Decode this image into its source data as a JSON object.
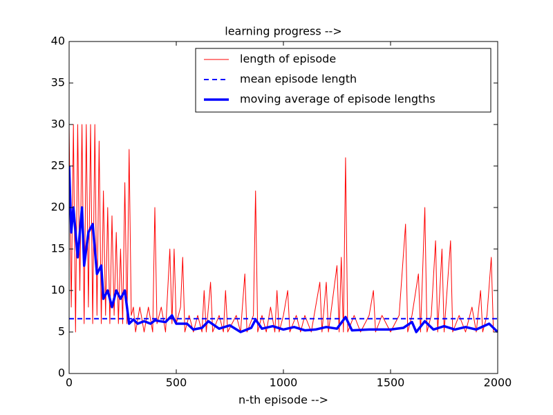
{
  "chart_data": {
    "type": "line",
    "title": "learning progress -->",
    "x_label": "n-th episode -->",
    "xlim": [
      0,
      2000
    ],
    "ylim": [
      0,
      40
    ],
    "xticks": [
      0,
      500,
      1000,
      1500,
      2000
    ],
    "yticks": [
      0,
      5,
      10,
      15,
      20,
      25,
      30,
      35,
      40
    ],
    "legend": "upper right",
    "series": [
      {
        "name": "length of episode",
        "color": "#ff0000",
        "linestyle": "solid",
        "linewidth": 1,
        "x": [
          0,
          10,
          20,
          30,
          40,
          50,
          60,
          70,
          80,
          90,
          100,
          110,
          120,
          130,
          140,
          150,
          160,
          170,
          180,
          190,
          200,
          210,
          220,
          230,
          240,
          250,
          260,
          270,
          280,
          290,
          300,
          310,
          330,
          350,
          370,
          390,
          400,
          410,
          430,
          450,
          470,
          480,
          490,
          500,
          520,
          530,
          540,
          560,
          580,
          600,
          620,
          630,
          640,
          660,
          670,
          700,
          720,
          730,
          740,
          780,
          800,
          820,
          830,
          860,
          870,
          880,
          900,
          920,
          940,
          960,
          970,
          980,
          1000,
          1020,
          1030,
          1060,
          1080,
          1100,
          1130,
          1170,
          1180,
          1200,
          1210,
          1250,
          1260,
          1270,
          1280,
          1290,
          1300,
          1330,
          1360,
          1400,
          1420,
          1430,
          1460,
          1500,
          1540,
          1570,
          1580,
          1600,
          1630,
          1640,
          1660,
          1670,
          1690,
          1710,
          1720,
          1740,
          1750,
          1780,
          1790,
          1820,
          1850,
          1880,
          1900,
          1920,
          1930,
          1950,
          1970,
          1980,
          2000
        ],
        "values": [
          30,
          8,
          30,
          5,
          30,
          10,
          30,
          6,
          30,
          8,
          30,
          6,
          30,
          7,
          28,
          6,
          22,
          7,
          20,
          6,
          19,
          7,
          17,
          6,
          15,
          6,
          23,
          6,
          27,
          7,
          8,
          5,
          8,
          5,
          8,
          5,
          20,
          6,
          8,
          5,
          15,
          6,
          15,
          6,
          8,
          14,
          5,
          7,
          5,
          7,
          5,
          10,
          5,
          11,
          5,
          7,
          5,
          10,
          5,
          7,
          5,
          12,
          5,
          7,
          22,
          5,
          7,
          5,
          8,
          5,
          10,
          5,
          7,
          10,
          5,
          7,
          5,
          7,
          5,
          11,
          5,
          11,
          5,
          13,
          5,
          14,
          5,
          26,
          5,
          7,
          5,
          7,
          10,
          5,
          7,
          5,
          7,
          18,
          5,
          7,
          12,
          5,
          20,
          5,
          7,
          16,
          5,
          15,
          5,
          16,
          5,
          7,
          5,
          8,
          5,
          10,
          5,
          7,
          14,
          5,
          5
        ]
      },
      {
        "name": "mean episode length",
        "color": "#0000ff",
        "linestyle": "dashed",
        "linewidth": 2,
        "x": [
          0,
          2000
        ],
        "values": [
          6.6,
          6.6
        ]
      },
      {
        "name": "moving average of episode lengths",
        "color": "#0000ff",
        "linestyle": "solid",
        "linewidth": 3.5,
        "x": [
          0,
          10,
          20,
          40,
          60,
          70,
          90,
          110,
          130,
          150,
          160,
          180,
          200,
          220,
          240,
          260,
          280,
          300,
          320,
          350,
          380,
          400,
          450,
          480,
          500,
          550,
          580,
          620,
          650,
          700,
          750,
          800,
          850,
          870,
          900,
          950,
          1000,
          1050,
          1100,
          1150,
          1200,
          1250,
          1290,
          1320,
          1400,
          1500,
          1560,
          1600,
          1620,
          1660,
          1700,
          1750,
          1800,
          1850,
          1900,
          1960,
          2000
        ],
        "values": [
          25,
          17,
          20,
          14,
          20,
          13,
          17,
          18,
          12,
          13,
          9,
          10,
          8,
          10,
          9,
          10,
          6,
          6.5,
          6,
          6.3,
          6,
          6.4,
          6.2,
          7,
          6,
          6,
          5.3,
          5.5,
          6.3,
          5.4,
          5.8,
          5,
          5.5,
          6.5,
          5.4,
          5.7,
          5.3,
          5.6,
          5.2,
          5.3,
          5.6,
          5.4,
          6.8,
          5.2,
          5.3,
          5.3,
          5.5,
          6.2,
          5,
          6.3,
          5.3,
          5.7,
          5.3,
          5.6,
          5.3,
          6,
          5
        ]
      }
    ]
  }
}
